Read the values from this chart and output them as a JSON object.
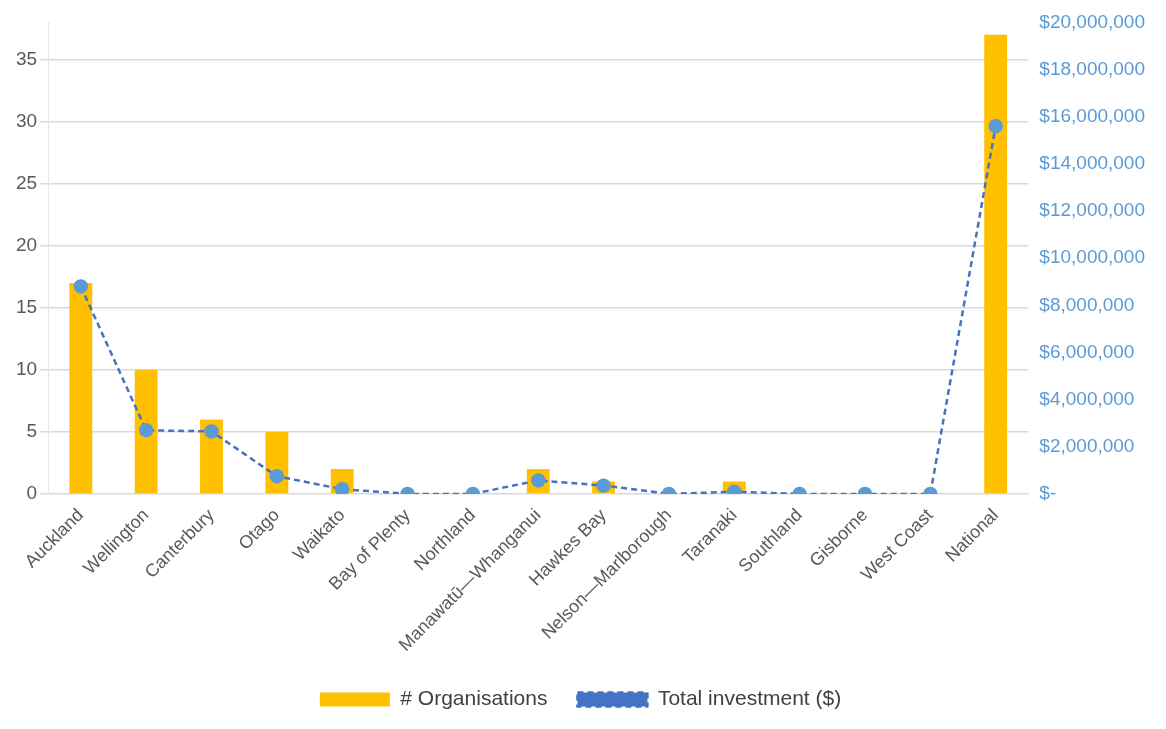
{
  "chart_data": {
    "type": "bar",
    "categories": [
      "Auckland",
      "Wellington",
      "Canterbury",
      "Otago",
      "Waikato",
      "Bay of Plenty",
      "Northland",
      "Manawatū—Whanganui",
      "Hawkes Bay",
      "Nelson—Marlborough",
      "Taranaki",
      "Southland",
      "Gisborne",
      "West Coast",
      "National"
    ],
    "series": [
      {
        "name": "# Organisations",
        "color": "#ffc000",
        "values": [
          17,
          10,
          6,
          5,
          2,
          0,
          0,
          2,
          1,
          0,
          1,
          0,
          0,
          0,
          37
        ]
      },
      {
        "name": "Total investment ($)",
        "type": "line",
        "axis": "y2",
        "color": "#4472c4",
        "marker": "circle",
        "line_style": "dashed",
        "values": [
          8800000,
          2700000,
          2650000,
          750000,
          200000,
          0,
          0,
          570000,
          350000,
          0,
          90000,
          0,
          0,
          0,
          15600000
        ]
      }
    ],
    "ylim": [
      0,
      38
    ],
    "yticks": [
      0,
      5,
      10,
      15,
      20,
      25,
      30,
      35
    ],
    "y2lim": [
      0,
      20000000
    ],
    "y2ticks": [
      {
        "value": 0,
        "label": "$-"
      },
      {
        "value": 2000000,
        "label": "$2,000,000"
      },
      {
        "value": 4000000,
        "label": "$4,000,000"
      },
      {
        "value": 6000000,
        "label": "$6,000,000"
      },
      {
        "value": 8000000,
        "label": "$8,000,000"
      },
      {
        "value": 10000000,
        "label": "$10,000,000"
      },
      {
        "value": 12000000,
        "label": "$12,000,000"
      },
      {
        "value": 14000000,
        "label": "$14,000,000"
      },
      {
        "value": 16000000,
        "label": "$16,000,000"
      },
      {
        "value": 18000000,
        "label": "$18,000,000"
      },
      {
        "value": 20000000,
        "label": "$20,000,000"
      }
    ],
    "grid": "y",
    "legend": "bottom"
  }
}
